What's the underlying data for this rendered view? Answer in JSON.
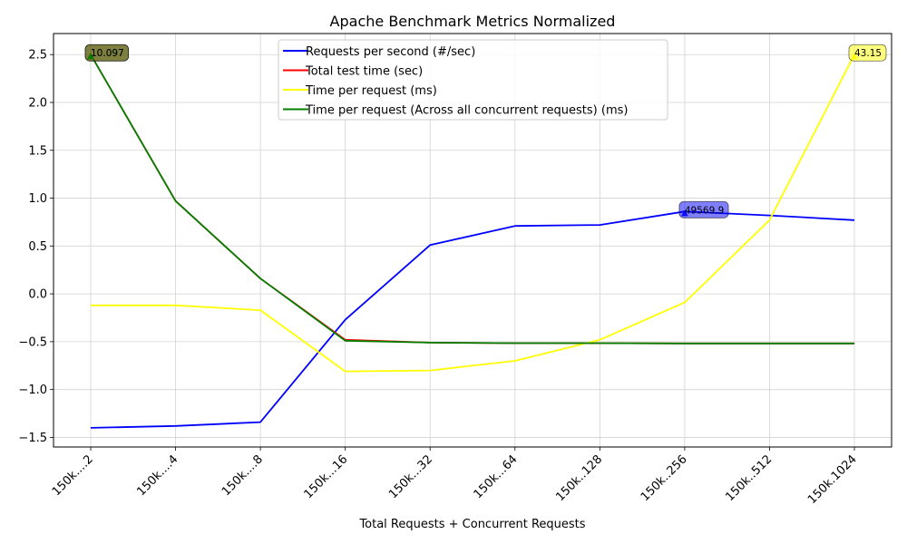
{
  "chart_data": {
    "type": "line",
    "title": "Apache Benchmark Metrics Normalized",
    "xlabel": "Total Requests + Concurrent Requests",
    "ylabel": "",
    "categories": [
      "150k....2",
      "150k....4",
      "150k....8",
      "150k...16",
      "150k...32",
      "150k...64",
      "150k..128",
      "150k..256",
      "150k..512",
      "150k.1024"
    ],
    "ylim": [
      -1.6,
      2.72
    ],
    "yticks": [
      -1.5,
      -1.0,
      -0.5,
      0.0,
      0.5,
      1.0,
      1.5,
      2.0,
      2.5
    ],
    "ytick_labels": [
      "−1.5",
      "−1.0",
      "−0.5",
      "0.0",
      "0.5",
      "1.0",
      "1.5",
      "2.0",
      "2.5"
    ],
    "grid": true,
    "legend_position": "top-center",
    "series": [
      {
        "name": "Requests per second (#/sec)",
        "color": "#0000ff",
        "values": [
          -1.4,
          -1.38,
          -1.34,
          -0.27,
          0.51,
          0.71,
          0.72,
          0.86,
          0.82,
          0.77
        ]
      },
      {
        "name": "Total test time (sec)",
        "color": "#ff0000",
        "values": [
          2.5,
          0.97,
          0.16,
          -0.48,
          -0.51,
          -0.515,
          -0.515,
          -0.518,
          -0.518,
          -0.518
        ]
      },
      {
        "name": "Time per request (ms)",
        "color": "#ffff00",
        "values": [
          -0.12,
          -0.12,
          -0.17,
          -0.81,
          -0.8,
          -0.7,
          -0.48,
          -0.09,
          0.77,
          2.5
        ]
      },
      {
        "name": "Time per request (Across all concurrent requests) (ms)",
        "color": "#008000",
        "values": [
          2.5,
          0.97,
          0.16,
          -0.49,
          -0.51,
          -0.515,
          -0.515,
          -0.518,
          -0.518,
          -0.518
        ]
      }
    ],
    "annotations": [
      {
        "text": "10.097",
        "category_index": 0,
        "y": 2.5,
        "color": "#ff0000",
        "series": 1
      },
      {
        "text": "10.097",
        "category_index": 0,
        "y": 2.5,
        "color": "#008000",
        "series": 3
      },
      {
        "text": "49569.9",
        "category_index": 7,
        "y": 0.86,
        "color": "#0000ff",
        "series": 0
      },
      {
        "text": "43.15",
        "category_index": 9,
        "y": 2.5,
        "color": "#ffff00",
        "series": 2
      }
    ]
  }
}
